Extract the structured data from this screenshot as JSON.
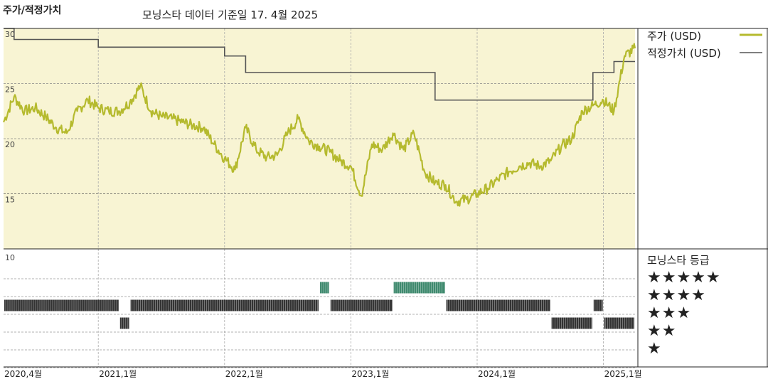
{
  "title": "주가/적정가치",
  "subtitle": "모닝스타 데이터 기준일 17. 4월 2025",
  "legend": {
    "price_label": "주가 (USD)",
    "fair_label": "적정가치 (USD)",
    "rating_label": "모닝스타 등급",
    "stars": [
      "★★★★★",
      "★★★★",
      "★★★",
      "★★",
      "★"
    ]
  },
  "colors": {
    "price": "#b5ba2e",
    "fair": "#555555",
    "panel": "#f8f4d3",
    "five_star": "#3f8a6e",
    "bar": "#333333"
  },
  "chart_data": {
    "type": "line",
    "ylim": [
      10,
      30
    ],
    "yticks": [
      "30",
      "25",
      "20",
      "15"
    ],
    "x_start": "2020-04",
    "x_end": "2025-04",
    "xticks": [
      {
        "label": "2020,4월",
        "date": "2020-04"
      },
      {
        "label": "2021,1월",
        "date": "2021-01"
      },
      {
        "label": "2022,1월",
        "date": "2022-01"
      },
      {
        "label": "2023,1월",
        "date": "2023-01"
      },
      {
        "label": "2024,1월",
        "date": "2024-01"
      },
      {
        "label": "2025,1월",
        "date": "2025-01"
      }
    ],
    "series": [
      {
        "name": "주가 (USD)",
        "points": [
          [
            "2020-04",
            21.5
          ],
          [
            "2020-05",
            23.8
          ],
          [
            "2020-06",
            22.5
          ],
          [
            "2020-07",
            22.8
          ],
          [
            "2020-08",
            22.0
          ],
          [
            "2020-09",
            21.0
          ],
          [
            "2020-10",
            20.5
          ],
          [
            "2020-11",
            22.5
          ],
          [
            "2020-12",
            23.5
          ],
          [
            "2021-01",
            22.8
          ],
          [
            "2021-02",
            22.5
          ],
          [
            "2021-03",
            22.5
          ],
          [
            "2021-04",
            23.3
          ],
          [
            "2021-05",
            24.8
          ],
          [
            "2021-06",
            22.5
          ],
          [
            "2021-07",
            22.0
          ],
          [
            "2021-08",
            21.8
          ],
          [
            "2021-09",
            21.5
          ],
          [
            "2021-10",
            21.2
          ],
          [
            "2021-11",
            21.0
          ],
          [
            "2021-12",
            19.5
          ],
          [
            "2022-01",
            18.2
          ],
          [
            "2022-02",
            17.2
          ],
          [
            "2022-03",
            21.0
          ],
          [
            "2022-04",
            19.0
          ],
          [
            "2022-05",
            18.3
          ],
          [
            "2022-06",
            18.5
          ],
          [
            "2022-07",
            20.5
          ],
          [
            "2022-08",
            21.8
          ],
          [
            "2022-09",
            19.8
          ],
          [
            "2022-10",
            19.3
          ],
          [
            "2022-11",
            18.8
          ],
          [
            "2022-12",
            18.0
          ],
          [
            "2023-01",
            17.5
          ],
          [
            "2023-02",
            14.8
          ],
          [
            "2023-03",
            19.5
          ],
          [
            "2023-04",
            19.0
          ],
          [
            "2023-05",
            20.5
          ],
          [
            "2023-06",
            19.0
          ],
          [
            "2023-07",
            20.5
          ],
          [
            "2023-08",
            17.0
          ],
          [
            "2023-09",
            16.0
          ],
          [
            "2023-10",
            15.8
          ],
          [
            "2023-11",
            14.3
          ],
          [
            "2023-12",
            14.5
          ],
          [
            "2024-01",
            15.0
          ],
          [
            "2024-02",
            15.5
          ],
          [
            "2024-03",
            16.3
          ],
          [
            "2024-04",
            17.0
          ],
          [
            "2024-05",
            17.5
          ],
          [
            "2024-06",
            17.8
          ],
          [
            "2024-07",
            17.5
          ],
          [
            "2024-08",
            18.0
          ],
          [
            "2024-09",
            19.3
          ],
          [
            "2024-10",
            20.0
          ],
          [
            "2024-11",
            22.5
          ],
          [
            "2024-12",
            23.0
          ],
          [
            "2025-01",
            23.5
          ],
          [
            "2025-02",
            22.5
          ],
          [
            "2025-03",
            27.5
          ],
          [
            "2025-04",
            28.2
          ]
        ]
      },
      {
        "name": "적정가치 (USD)",
        "steps": [
          [
            "2020-04",
            30.0
          ],
          [
            "2020-05",
            29.0
          ],
          [
            "2021-01",
            28.3
          ],
          [
            "2022-01",
            27.5
          ],
          [
            "2022-03",
            26.0
          ],
          [
            "2023-09",
            23.5
          ],
          [
            "2024-12",
            26.0
          ],
          [
            "2025-02",
            27.0
          ],
          [
            "2025-04",
            27.0
          ]
        ]
      }
    ],
    "rating_history": [
      {
        "stars": 4,
        "from": "2020-04",
        "to": "2021-03"
      },
      {
        "stars": 3,
        "from": "2021-03",
        "to": "2021-04"
      },
      {
        "stars": 4,
        "from": "2021-04",
        "to": "2022-10"
      },
      {
        "stars": 5,
        "from": "2022-10",
        "to": "2022-11"
      },
      {
        "stars": 4,
        "from": "2022-11",
        "to": "2023-05"
      },
      {
        "stars": 5,
        "from": "2023-05",
        "to": "2023-10"
      },
      {
        "stars": 4,
        "from": "2023-10",
        "to": "2024-08"
      },
      {
        "stars": 3,
        "from": "2024-08",
        "to": "2024-12"
      },
      {
        "stars": 4,
        "from": "2024-12",
        "to": "2025-01"
      },
      {
        "stars": 3,
        "from": "2025-01",
        "to": "2025-04"
      }
    ]
  }
}
